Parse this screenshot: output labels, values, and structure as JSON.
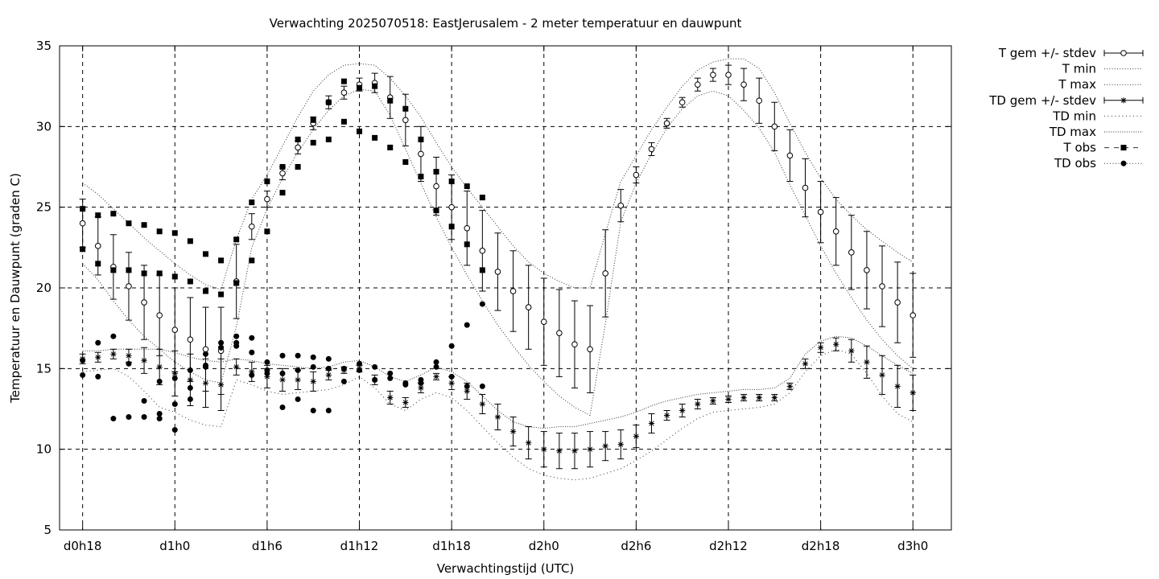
{
  "chart_data": {
    "type": "line",
    "title": "Verwachting 2025070518: EastJerusalem - 2 meter temperatuur en dauwpunt",
    "xlabel": "Verwachtingstijd (UTC)",
    "ylabel": "Temperatuur en Dauwpunt (graden C)",
    "x_unit": "forecast hour",
    "xlim": [
      -1.5,
      56.5
    ],
    "ylim": [
      5,
      35
    ],
    "x_ticks": [
      0,
      6,
      12,
      18,
      24,
      30,
      36,
      42,
      48,
      54
    ],
    "x_tick_labels": [
      "d0h18",
      "d1h0",
      "d1h6",
      "d1h12",
      "d1h18",
      "d2h0",
      "d2h6",
      "d2h12",
      "d2h18",
      "d3h0"
    ],
    "y_ticks": [
      5,
      10,
      15,
      20,
      25,
      30,
      35
    ],
    "grid": true,
    "legend_position": "outside-top-right",
    "legend": [
      "T gem +/- stdev",
      "T min",
      "T max",
      "TD gem +/- stdev",
      "TD min",
      "TD max",
      "T obs",
      "TD obs"
    ],
    "series": [
      {
        "name": "T gem +/- stdev",
        "x": [
          0,
          1,
          2,
          3,
          4,
          5,
          6,
          7,
          8,
          9,
          10,
          11,
          12,
          13,
          14,
          15,
          16,
          17,
          18,
          19,
          20,
          21,
          22,
          23,
          24,
          25,
          26,
          27,
          28,
          29,
          30,
          31,
          32,
          33,
          34,
          35,
          36,
          37,
          38,
          39,
          40,
          41,
          42,
          43,
          44,
          45,
          46,
          47,
          48,
          49,
          50,
          51,
          52,
          53,
          54
        ],
        "y": [
          24.0,
          22.6,
          21.3,
          20.1,
          19.1,
          18.3,
          17.4,
          16.8,
          16.2,
          16.1,
          20.4,
          23.8,
          25.5,
          27.1,
          28.7,
          30.2,
          31.5,
          32.1,
          32.6,
          32.7,
          31.8,
          30.4,
          28.3,
          26.3,
          25.0,
          23.7,
          22.3,
          21.0,
          19.8,
          18.8,
          17.9,
          17.2,
          16.5,
          16.2,
          20.9,
          25.1,
          27.0,
          28.6,
          30.2,
          31.5,
          32.6,
          33.2,
          33.2,
          32.6,
          31.6,
          30.0,
          28.2,
          26.2,
          24.7,
          23.5,
          22.2,
          21.1,
          20.1,
          19.1,
          18.3
        ],
        "err": [
          1.5,
          1.8,
          2.0,
          2.1,
          2.3,
          2.5,
          2.6,
          2.6,
          2.6,
          2.7,
          2.3,
          0.8,
          0.5,
          0.4,
          0.4,
          0.4,
          0.4,
          0.4,
          0.4,
          0.6,
          1.3,
          1.6,
          1.7,
          1.8,
          2.0,
          2.3,
          2.5,
          2.4,
          2.5,
          2.6,
          2.7,
          2.7,
          2.7,
          2.7,
          2.7,
          1.0,
          0.5,
          0.4,
          0.3,
          0.3,
          0.4,
          0.4,
          0.6,
          1.0,
          1.4,
          1.5,
          1.6,
          1.8,
          1.9,
          2.1,
          2.3,
          2.4,
          2.5,
          2.5,
          2.6
        ]
      },
      {
        "name": "T min",
        "x": [
          0,
          1,
          2,
          3,
          4,
          5,
          6,
          7,
          8,
          9,
          10,
          11,
          12,
          13,
          14,
          15,
          16,
          17,
          18,
          19,
          20,
          21,
          22,
          23,
          24,
          25,
          26,
          27,
          28,
          29,
          30,
          31,
          32,
          33,
          34,
          35,
          36,
          37,
          38,
          39,
          40,
          41,
          42,
          43,
          44,
          45,
          46,
          47,
          48,
          49,
          50,
          51,
          52,
          53,
          54
        ],
        "y": [
          21.5,
          20.5,
          19.2,
          18.0,
          17.0,
          16.2,
          15.4,
          14.8,
          14.3,
          14.1,
          17.6,
          22.5,
          24.9,
          26.8,
          28.4,
          29.8,
          31.0,
          31.9,
          32.3,
          32.2,
          30.7,
          28.6,
          26.5,
          24.4,
          22.5,
          20.8,
          19.2,
          17.7,
          16.4,
          15.2,
          14.2,
          13.3,
          12.6,
          12.1,
          17.8,
          24.1,
          26.5,
          28.3,
          29.9,
          31.1,
          31.9,
          32.2,
          31.9,
          31.0,
          29.9,
          28.4,
          26.4,
          24.5,
          22.6,
          20.9,
          19.4,
          18.0,
          16.8,
          15.8,
          15.0
        ]
      },
      {
        "name": "T max",
        "x": [
          0,
          1,
          2,
          3,
          4,
          5,
          6,
          7,
          8,
          9,
          10,
          11,
          12,
          13,
          14,
          15,
          16,
          17,
          18,
          19,
          20,
          21,
          22,
          23,
          24,
          25,
          26,
          27,
          28,
          29,
          30,
          31,
          32,
          33,
          34,
          35,
          36,
          37,
          38,
          39,
          40,
          41,
          42,
          43,
          44,
          45,
          46,
          47,
          48,
          49,
          50,
          51,
          52,
          53,
          54
        ],
        "y": [
          26.5,
          25.8,
          24.9,
          24.0,
          23.1,
          22.3,
          21.5,
          20.8,
          20.2,
          19.9,
          23.0,
          25.5,
          27.0,
          28.8,
          30.6,
          32.2,
          33.2,
          33.8,
          33.9,
          33.8,
          33.0,
          31.9,
          30.6,
          29.0,
          27.5,
          26.2,
          25.0,
          23.8,
          22.6,
          21.6,
          20.9,
          20.4,
          20.0,
          20.0,
          23.4,
          26.6,
          28.2,
          29.8,
          31.2,
          32.5,
          33.5,
          34.0,
          34.2,
          34.2,
          33.6,
          32.1,
          30.2,
          28.4,
          26.8,
          25.5,
          24.5,
          23.6,
          22.9,
          22.2,
          21.6
        ]
      },
      {
        "name": "TD gem +/- stdev",
        "x": [
          0,
          1,
          2,
          3,
          4,
          5,
          6,
          7,
          8,
          9,
          10,
          11,
          12,
          13,
          14,
          15,
          16,
          17,
          18,
          19,
          20,
          21,
          22,
          23,
          24,
          25,
          26,
          27,
          28,
          29,
          30,
          31,
          32,
          33,
          34,
          35,
          36,
          37,
          38,
          39,
          40,
          41,
          42,
          43,
          44,
          45,
          46,
          47,
          48,
          49,
          50,
          51,
          52,
          53,
          54
        ],
        "y": [
          15.6,
          15.7,
          15.9,
          15.8,
          15.5,
          15.1,
          14.7,
          14.3,
          14.1,
          14.0,
          15.1,
          14.8,
          14.5,
          14.3,
          14.3,
          14.2,
          14.6,
          14.9,
          15.0,
          14.3,
          13.2,
          12.9,
          13.8,
          14.5,
          14.1,
          13.6,
          12.8,
          12.0,
          11.1,
          10.4,
          10.0,
          9.9,
          9.9,
          10.0,
          10.2,
          10.3,
          10.8,
          11.6,
          12.1,
          12.4,
          12.8,
          13.0,
          13.1,
          13.2,
          13.2,
          13.2,
          13.9,
          15.3,
          16.3,
          16.5,
          16.1,
          15.4,
          14.6,
          13.9,
          13.5
        ],
        "err": [
          0.3,
          0.3,
          0.3,
          0.4,
          0.8,
          1.1,
          1.4,
          1.6,
          1.5,
          1.6,
          0.5,
          0.6,
          0.7,
          0.7,
          0.6,
          0.6,
          0.3,
          0.2,
          0.2,
          0.3,
          0.4,
          0.3,
          0.3,
          0.2,
          0.4,
          0.5,
          0.6,
          0.8,
          0.9,
          1.0,
          1.1,
          1.1,
          1.1,
          1.1,
          0.9,
          0.9,
          0.7,
          0.6,
          0.3,
          0.4,
          0.3,
          0.2,
          0.2,
          0.2,
          0.2,
          0.2,
          0.2,
          0.3,
          0.3,
          0.4,
          0.7,
          1.0,
          1.2,
          1.3,
          1.1
        ]
      },
      {
        "name": "TD min",
        "x": [
          0,
          1,
          2,
          3,
          4,
          5,
          6,
          7,
          8,
          9,
          10,
          11,
          12,
          13,
          14,
          15,
          16,
          17,
          18,
          19,
          20,
          21,
          22,
          23,
          24,
          25,
          26,
          27,
          28,
          29,
          30,
          31,
          32,
          33,
          34,
          35,
          36,
          37,
          38,
          39,
          40,
          41,
          42,
          43,
          44,
          45,
          46,
          47,
          48,
          49,
          50,
          51,
          52,
          53,
          54
        ],
        "y": [
          14.8,
          14.9,
          15.0,
          14.5,
          13.6,
          12.6,
          12.3,
          11.8,
          11.5,
          11.4,
          14.3,
          14.0,
          13.6,
          13.4,
          13.5,
          13.6,
          13.7,
          14.0,
          14.5,
          13.8,
          12.8,
          12.4,
          13.1,
          13.5,
          13.2,
          12.4,
          11.4,
          10.4,
          9.5,
          8.8,
          8.4,
          8.2,
          8.1,
          8.2,
          8.5,
          8.8,
          9.3,
          9.9,
          10.6,
          11.3,
          11.9,
          12.3,
          12.4,
          12.5,
          12.6,
          12.8,
          13.5,
          14.8,
          15.8,
          16.2,
          15.9,
          14.7,
          13.3,
          12.2,
          11.7
        ]
      },
      {
        "name": "TD max",
        "x": [
          0,
          1,
          2,
          3,
          4,
          5,
          6,
          7,
          8,
          9,
          10,
          11,
          12,
          13,
          14,
          15,
          16,
          17,
          18,
          19,
          20,
          21,
          22,
          23,
          24,
          25,
          26,
          27,
          28,
          29,
          30,
          31,
          32,
          33,
          34,
          35,
          36,
          37,
          38,
          39,
          40,
          41,
          42,
          43,
          44,
          45,
          46,
          47,
          48,
          49,
          50,
          51,
          52,
          53,
          54
        ],
        "y": [
          16.1,
          16.1,
          16.2,
          16.2,
          16.2,
          16.2,
          16.0,
          15.7,
          15.5,
          15.4,
          15.6,
          15.5,
          15.3,
          15.2,
          15.1,
          15.0,
          15.1,
          15.4,
          15.5,
          15.1,
          14.5,
          14.2,
          14.6,
          15.1,
          14.8,
          14.2,
          13.3,
          12.4,
          11.7,
          11.4,
          11.3,
          11.4,
          11.4,
          11.6,
          11.8,
          12.0,
          12.3,
          12.7,
          13.0,
          13.2,
          13.4,
          13.5,
          13.6,
          13.7,
          13.7,
          13.8,
          14.4,
          15.9,
          16.7,
          17.0,
          16.9,
          16.4,
          15.8,
          15.2,
          14.7
        ]
      },
      {
        "name": "T obs",
        "x": [
          0,
          0,
          1,
          1,
          2,
          2,
          3,
          3,
          4,
          4,
          5,
          5,
          6,
          6,
          7,
          7,
          8,
          8,
          9,
          9,
          10,
          10,
          11,
          11,
          12,
          12,
          13,
          13,
          14,
          14,
          15,
          15,
          16,
          16,
          17,
          17,
          18,
          18,
          19,
          19,
          20,
          20,
          21,
          21,
          22,
          22,
          23,
          23,
          24,
          24,
          25,
          25,
          26,
          26
        ],
        "y": [
          24.9,
          22.4,
          24.5,
          21.5,
          24.6,
          21.1,
          24.0,
          21.1,
          23.9,
          20.9,
          23.5,
          20.9,
          23.4,
          20.7,
          22.9,
          20.4,
          22.1,
          19.8,
          21.7,
          19.6,
          23.0,
          20.3,
          25.3,
          21.7,
          26.6,
          23.5,
          27.5,
          25.9,
          29.2,
          27.5,
          30.4,
          29.0,
          31.5,
          29.2,
          32.8,
          30.3,
          32.4,
          29.7,
          32.5,
          29.3,
          31.6,
          28.7,
          31.1,
          27.8,
          29.2,
          26.9,
          27.2,
          24.8,
          26.6,
          23.8,
          26.3,
          22.7,
          25.6,
          21.1
        ]
      },
      {
        "name": "TD obs",
        "x": [
          0,
          0,
          1,
          1,
          2,
          2,
          3,
          3,
          4,
          4,
          5,
          5,
          5,
          6,
          6,
          6,
          7,
          7,
          7,
          8,
          8,
          8,
          9,
          9,
          9,
          10,
          10,
          10,
          11,
          11,
          11,
          12,
          12,
          12,
          13,
          13,
          13,
          14,
          14,
          14,
          15,
          15,
          15,
          16,
          16,
          16,
          17,
          17,
          18,
          18,
          19,
          19,
          20,
          20,
          21,
          21,
          22,
          22,
          23,
          23,
          24,
          24,
          25,
          25,
          26,
          26
        ],
        "y": [
          15.5,
          14.6,
          16.6,
          14.5,
          17.0,
          11.9,
          15.3,
          12.0,
          13.0,
          12.0,
          14.2,
          12.2,
          11.9,
          11.2,
          12.8,
          14.4,
          13.8,
          13.1,
          14.9,
          15.9,
          15.1,
          15.2,
          16.6,
          16.3,
          16.3,
          17.0,
          16.6,
          16.4,
          16.9,
          16.0,
          14.6,
          15.4,
          14.9,
          14.7,
          15.8,
          14.7,
          12.6,
          15.8,
          14.9,
          13.1,
          15.7,
          15.1,
          12.4,
          15.6,
          15.0,
          12.4,
          15.0,
          14.2,
          15.3,
          14.9,
          15.1,
          14.3,
          14.7,
          14.4,
          14.1,
          14.0,
          14.3,
          14.1,
          15.4,
          15.1,
          16.4,
          14.5,
          17.7,
          13.9,
          19.0,
          13.9
        ]
      }
    ]
  }
}
